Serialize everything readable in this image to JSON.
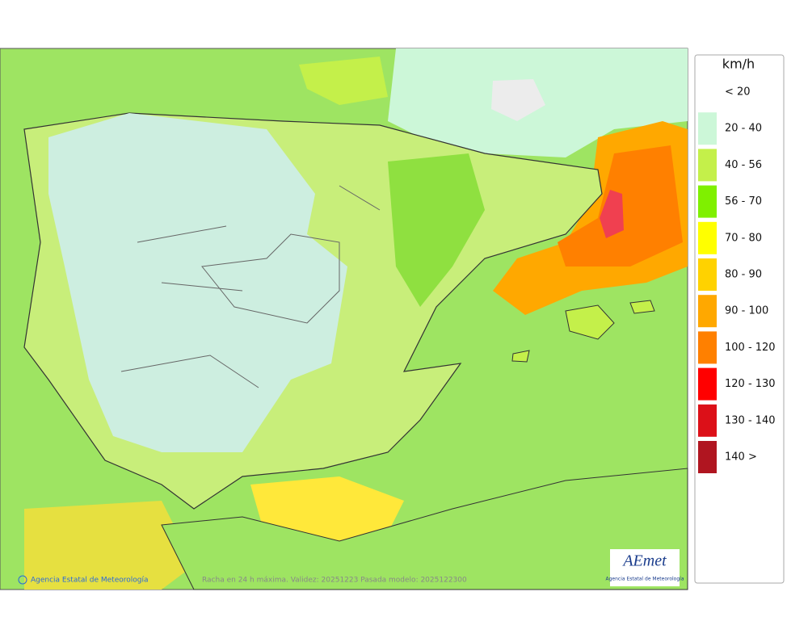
{
  "legend": {
    "title": "km/h",
    "items": [
      {
        "label": "< 20",
        "color": "#ffffff"
      },
      {
        "label": "20 - 40",
        "color": "#ccf7d8"
      },
      {
        "label": "40 - 56",
        "color": "#c4f04a"
      },
      {
        "label": "56 - 70",
        "color": "#7ff000"
      },
      {
        "label": "70 - 80",
        "color": "#ffff00"
      },
      {
        "label": "80 - 90",
        "color": "#ffd200"
      },
      {
        "label": "90 - 100",
        "color": "#ffa800"
      },
      {
        "label": "100 - 120",
        "color": "#ff8000"
      },
      {
        "label": "120 - 130",
        "color": "#ff0000"
      },
      {
        "label": "130 - 140",
        "color": "#dc1018"
      },
      {
        "label": "140 >",
        "color": "#b01520"
      }
    ]
  },
  "footer": {
    "credit": "Agencia Estatal de Meteorología",
    "caption": "Racha en 24 h máxima. Validez: 20251223 Pasada modelo: 2025122300"
  },
  "logo": {
    "name": "AEmet",
    "subtitle": "Agencia Estatal de Meteorología"
  }
}
